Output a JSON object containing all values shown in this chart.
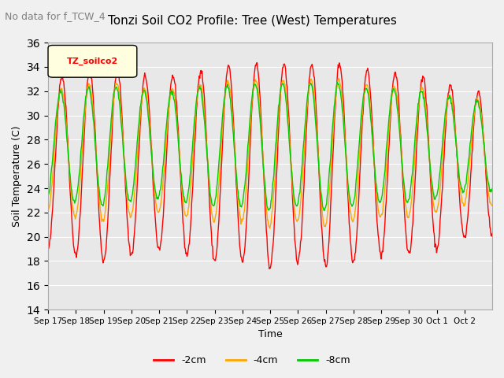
{
  "title": "Tonzi Soil CO2 Profile: Tree (West) Temperatures",
  "subtitle": "No data for f_TCW_4",
  "ylabel": "Soil Temperature (C)",
  "xlabel": "Time",
  "ylim": [
    14,
    36
  ],
  "yticks": [
    14,
    16,
    18,
    20,
    22,
    24,
    26,
    28,
    30,
    32,
    34,
    36
  ],
  "xtick_labels": [
    "Sep 17",
    "Sep 18",
    "Sep 19",
    "Sep 20",
    "Sep 21",
    "Sep 22",
    "Sep 23",
    "Sep 24",
    "Sep 25",
    "Sep 26",
    "Sep 27",
    "Sep 28",
    "Sep 29",
    "Sep 30",
    "Oct 1",
    "Oct 2"
  ],
  "legend_label": "TZ_soilco2",
  "series_labels": [
    "-2cm",
    "-4cm",
    "-8cm"
  ],
  "series_colors": [
    "#ff0000",
    "#ffa500",
    "#00cc00"
  ],
  "background_color": "#f0f0f0",
  "plot_bg_color": "#e8e8e8",
  "n_days": 16,
  "samples_per_day": 48
}
